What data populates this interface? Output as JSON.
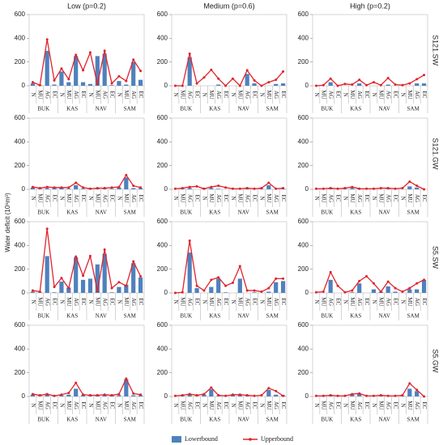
{
  "column_titles": [
    "Low (p=0.2)",
    "Medium (p=0.6)",
    "High (p=0.2)"
  ],
  "row_labels": [
    "S121.SW",
    "S121.GW",
    "S5.SW",
    "S5.GW"
  ],
  "y_label": "Water deficit (10⁶m³)",
  "chart_data": [
    {
      "type": "bar_line",
      "categories": [
        "N",
        "MU",
        "AG",
        "EC",
        "N",
        "MU",
        "AG",
        "EC",
        "N",
        "MU",
        "AG",
        "EC",
        "N",
        "MU",
        "AG",
        "EC"
      ],
      "groups": [
        "BUK",
        "KAS",
        "NAV",
        "SAM"
      ],
      "ylim": [
        0,
        600
      ],
      "yticks": [
        0,
        200,
        400,
        600
      ],
      "series": [
        {
          "name": "Lowerbound",
          "color": "#4f81bd",
          "values": [
            20,
            5,
            295,
            10,
            120,
            30,
            250,
            30,
            15,
            250,
            270,
            5,
            40,
            10,
            200,
            50
          ]
        },
        {
          "name": "Upperbound",
          "color": "#e0232b",
          "values": [
            30,
            5,
            390,
            45,
            145,
            55,
            260,
            130,
            280,
            15,
            295,
            20,
            80,
            40,
            220,
            125
          ]
        }
      ]
    },
    {
      "type": "bar_line",
      "categories": [
        "N",
        "MU",
        "AG",
        "EC",
        "N",
        "MU",
        "AG",
        "EC",
        "N",
        "MU",
        "AG",
        "EC",
        "N",
        "MU",
        "AG",
        "EC"
      ],
      "groups": [
        "BUK",
        "KAS",
        "NAV",
        "SAM"
      ],
      "ylim": [
        0,
        600
      ],
      "yticks": [
        0,
        200,
        400,
        600
      ],
      "series": [
        {
          "name": "Lowerbound",
          "color": "#4f81bd",
          "values": [
            0,
            0,
            240,
            0,
            0,
            0,
            10,
            0,
            0,
            0,
            100,
            20,
            0,
            0,
            15,
            20
          ]
        },
        {
          "name": "Upperbound",
          "color": "#e0232b",
          "values": [
            0,
            0,
            270,
            20,
            70,
            135,
            60,
            0,
            60,
            0,
            130,
            45,
            0,
            30,
            50,
            120
          ]
        }
      ]
    },
    {
      "type": "bar_line",
      "categories": [
        "N",
        "MU",
        "AG",
        "EC",
        "N",
        "MU",
        "AG",
        "EC",
        "N",
        "MU",
        "AG",
        "EC",
        "N",
        "MU",
        "AG",
        "EC"
      ],
      "groups": [
        "BUK",
        "KAS",
        "NAV",
        "SAM"
      ],
      "ylim": [
        0,
        600
      ],
      "yticks": [
        0,
        200,
        400,
        600
      ],
      "series": [
        {
          "name": "Lowerbound",
          "color": "#4f81bd",
          "values": [
            0,
            0,
            30,
            0,
            0,
            0,
            20,
            0,
            0,
            0,
            10,
            0,
            0,
            0,
            20,
            20
          ]
        },
        {
          "name": "Upperbound",
          "color": "#e0232b",
          "values": [
            0,
            5,
            60,
            0,
            15,
            10,
            50,
            5,
            30,
            5,
            65,
            10,
            5,
            20,
            55,
            90
          ]
        }
      ]
    },
    {
      "type": "bar_line",
      "categories": [
        "N",
        "MU",
        "AG",
        "EC",
        "N",
        "MU",
        "AG",
        "EC",
        "N",
        "MU",
        "AG",
        "EC",
        "N",
        "MU",
        "AG",
        "EC"
      ],
      "groups": [
        "BUK",
        "KAS",
        "NAV",
        "SAM"
      ],
      "ylim": [
        0,
        600
      ],
      "yticks": [
        0,
        200,
        400,
        600
      ],
      "series": [
        {
          "name": "Lowerbound",
          "color": "#4f81bd",
          "values": [
            15,
            5,
            10,
            10,
            10,
            5,
            35,
            5,
            5,
            5,
            5,
            5,
            15,
            100,
            10,
            10
          ]
        },
        {
          "name": "Upperbound",
          "color": "#e0232b",
          "values": [
            20,
            10,
            20,
            15,
            15,
            15,
            55,
            15,
            5,
            10,
            10,
            15,
            20,
            120,
            30,
            15
          ]
        }
      ]
    },
    {
      "type": "bar_line",
      "categories": [
        "N",
        "MU",
        "AG",
        "EC",
        "N",
        "MU",
        "AG",
        "EC",
        "N",
        "MU",
        "AG",
        "EC",
        "N",
        "MU",
        "AG",
        "EC"
      ],
      "groups": [
        "BUK",
        "KAS",
        "NAV",
        "SAM"
      ],
      "ylim": [
        0,
        600
      ],
      "yticks": [
        0,
        200,
        400,
        600
      ],
      "series": [
        {
          "name": "Lowerbound",
          "color": "#4f81bd",
          "values": [
            0,
            5,
            10,
            0,
            10,
            10,
            5,
            0,
            0,
            0,
            5,
            0,
            5,
            35,
            0,
            5
          ]
        },
        {
          "name": "Upperbound",
          "color": "#e0232b",
          "values": [
            5,
            10,
            20,
            25,
            5,
            20,
            30,
            15,
            5,
            5,
            10,
            5,
            10,
            55,
            5,
            10
          ]
        }
      ]
    },
    {
      "type": "bar_line",
      "categories": [
        "N",
        "MU",
        "AG",
        "EC",
        "N",
        "MU",
        "AG",
        "EC",
        "N",
        "MU",
        "AG",
        "EC",
        "N",
        "MU",
        "AG",
        "EC"
      ],
      "groups": [
        "BUK",
        "KAS",
        "NAV",
        "SAM"
      ],
      "ylim": [
        0,
        600
      ],
      "yticks": [
        0,
        200,
        400,
        600
      ],
      "series": [
        {
          "name": "Lowerbound",
          "color": "#4f81bd",
          "values": [
            0,
            0,
            5,
            0,
            5,
            10,
            5,
            0,
            0,
            0,
            5,
            0,
            0,
            25,
            15,
            0
          ]
        },
        {
          "name": "Upperbound",
          "color": "#e0232b",
          "values": [
            5,
            5,
            10,
            5,
            10,
            20,
            5,
            5,
            5,
            10,
            10,
            5,
            10,
            65,
            30,
            0
          ]
        }
      ]
    },
    {
      "type": "bar_line",
      "categories": [
        "N",
        "MU",
        "AG",
        "EC",
        "N",
        "MU",
        "AG",
        "EC",
        "N",
        "MU",
        "AG",
        "EC",
        "N",
        "MU",
        "AG",
        "EC"
      ],
      "groups": [
        "BUK",
        "KAS",
        "NAV",
        "SAM"
      ],
      "ylim": [
        0,
        600
      ],
      "yticks": [
        0,
        200,
        400,
        600
      ],
      "series": [
        {
          "name": "Lowerbound",
          "color": "#4f81bd",
          "values": [
            10,
            5,
            310,
            5,
            95,
            45,
            300,
            110,
            120,
            240,
            330,
            5,
            50,
            70,
            250,
            130
          ]
        },
        {
          "name": "Upperbound",
          "color": "#e0232b",
          "values": [
            20,
            10,
            540,
            50,
            125,
            40,
            305,
            145,
            310,
            15,
            365,
            40,
            90,
            60,
            265,
            140
          ]
        }
      ]
    },
    {
      "type": "bar_line",
      "categories": [
        "N",
        "MU",
        "AG",
        "EC",
        "N",
        "MU",
        "AG",
        "EC",
        "N",
        "MU",
        "AG",
        "EC",
        "N",
        "MU",
        "AG",
        "EC"
      ],
      "groups": [
        "BUK",
        "KAS",
        "NAV",
        "SAM"
      ],
      "ylim": [
        0,
        600
      ],
      "yticks": [
        0,
        200,
        400,
        600
      ],
      "series": [
        {
          "name": "Lowerbound",
          "color": "#4f81bd",
          "values": [
            0,
            0,
            340,
            40,
            0,
            50,
            120,
            5,
            0,
            120,
            0,
            5,
            0,
            10,
            90,
            100
          ]
        },
        {
          "name": "Upperbound",
          "color": "#e0232b",
          "values": [
            0,
            5,
            440,
            60,
            20,
            110,
            130,
            60,
            85,
            225,
            20,
            20,
            10,
            40,
            120,
            120
          ]
        }
      ]
    },
    {
      "type": "bar_line",
      "categories": [
        "N",
        "MU",
        "AG",
        "EC",
        "N",
        "MU",
        "AG",
        "EC",
        "N",
        "MU",
        "AG",
        "EC",
        "N",
        "MU",
        "AG",
        "EC"
      ],
      "groups": [
        "BUK",
        "KAS",
        "NAV",
        "SAM"
      ],
      "ylim": [
        0,
        600
      ],
      "yticks": [
        0,
        200,
        400,
        600
      ],
      "series": [
        {
          "name": "Lowerbound",
          "color": "#4f81bd",
          "values": [
            0,
            0,
            110,
            0,
            0,
            5,
            80,
            0,
            30,
            10,
            55,
            10,
            0,
            30,
            30,
            110
          ]
        },
        {
          "name": "Upperbound",
          "color": "#e0232b",
          "values": [
            5,
            10,
            175,
            60,
            5,
            20,
            100,
            140,
            80,
            10,
            95,
            40,
            10,
            40,
            80,
            110
          ]
        }
      ]
    },
    {
      "type": "bar_line",
      "categories": [
        "N",
        "MU",
        "AG",
        "EC",
        "N",
        "MU",
        "AG",
        "EC",
        "N",
        "MU",
        "AG",
        "EC",
        "N",
        "MU",
        "AG",
        "EC"
      ],
      "groups": [
        "BUK",
        "KAS",
        "NAV",
        "SAM"
      ],
      "ylim": [
        0,
        600
      ],
      "yticks": [
        0,
        200,
        400,
        600
      ],
      "series": [
        {
          "name": "Lowerbound",
          "color": "#4f81bd",
          "values": [
            15,
            5,
            15,
            5,
            10,
            15,
            65,
            10,
            5,
            10,
            10,
            10,
            10,
            145,
            10,
            10
          ]
        },
        {
          "name": "Upperbound",
          "color": "#e0232b",
          "values": [
            20,
            10,
            20,
            5,
            15,
            30,
            115,
            15,
            10,
            10,
            15,
            10,
            20,
            150,
            25,
            15
          ]
        }
      ]
    },
    {
      "type": "bar_line",
      "categories": [
        "N",
        "MU",
        "AG",
        "EC",
        "N",
        "MU",
        "AG",
        "EC",
        "N",
        "MU",
        "AG",
        "EC",
        "N",
        "MU",
        "AG",
        "EC"
      ],
      "groups": [
        "BUK",
        "KAS",
        "NAV",
        "SAM"
      ],
      "ylim": [
        0,
        600
      ],
      "yticks": [
        0,
        200,
        400,
        600
      ],
      "series": [
        {
          "name": "Lowerbound",
          "color": "#4f81bd",
          "values": [
            0,
            5,
            15,
            5,
            15,
            60,
            5,
            0,
            10,
            10,
            5,
            0,
            0,
            55,
            15,
            10
          ]
        },
        {
          "name": "Upperbound",
          "color": "#e0232b",
          "values": [
            5,
            10,
            20,
            10,
            20,
            75,
            10,
            5,
            15,
            15,
            10,
            5,
            10,
            70,
            45,
            5
          ]
        }
      ]
    },
    {
      "type": "bar_line",
      "categories": [
        "N",
        "MU",
        "AG",
        "EC",
        "N",
        "MU",
        "AG",
        "EC",
        "N",
        "MU",
        "AG",
        "EC",
        "N",
        "MU",
        "AG",
        "EC"
      ],
      "groups": [
        "BUK",
        "KAS",
        "NAV",
        "SAM"
      ],
      "ylim": [
        0,
        600
      ],
      "yticks": [
        0,
        200,
        400,
        600
      ],
      "series": [
        {
          "name": "Lowerbound",
          "color": "#4f81bd",
          "values": [
            0,
            5,
            5,
            0,
            0,
            15,
            20,
            0,
            0,
            5,
            0,
            0,
            5,
            65,
            45,
            0
          ]
        },
        {
          "name": "Upperbound",
          "color": "#e0232b",
          "values": [
            5,
            5,
            10,
            5,
            5,
            20,
            25,
            5,
            5,
            10,
            5,
            5,
            10,
            110,
            55,
            0
          ]
        }
      ]
    }
  ]
}
